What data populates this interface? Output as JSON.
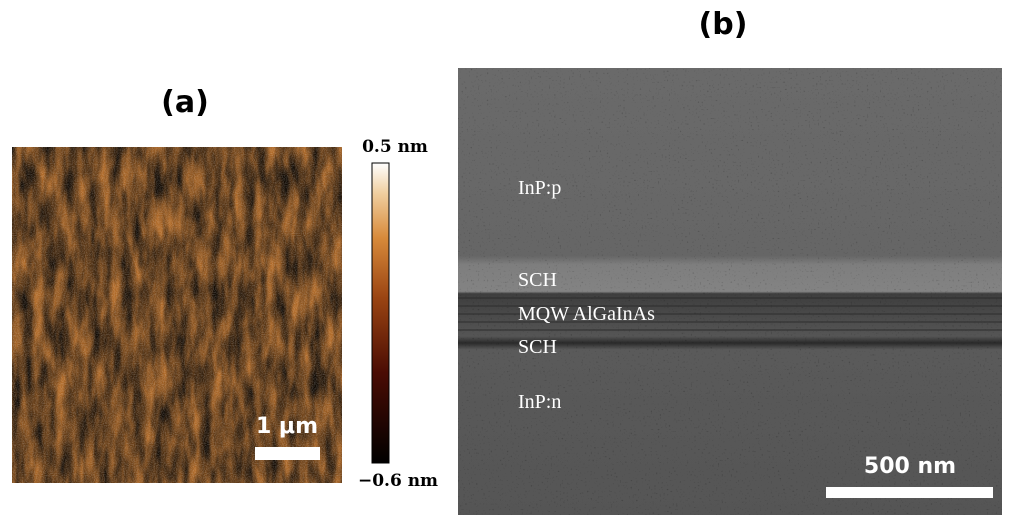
{
  "panels": {
    "a": {
      "label": "(a)",
      "colorbar": {
        "max_label": "0.5 nm",
        "min_label": "−0.6 nm"
      },
      "scale_bar": "1 μm"
    },
    "b": {
      "label": "(b)",
      "layers": [
        "InP:p",
        "SCH",
        "MQW AlGaInAs",
        "SCH",
        "InP:n"
      ],
      "scale_bar": "500 nm"
    }
  }
}
